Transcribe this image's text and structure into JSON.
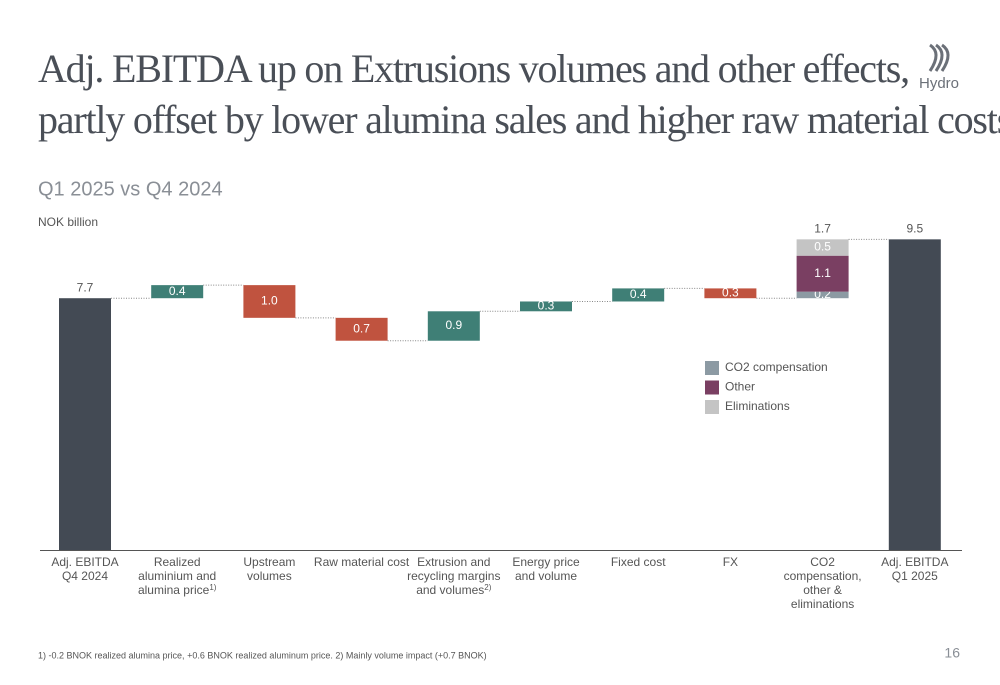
{
  "header": {
    "title": [
      "Adj. EBITDA up on Extrusions volumes and other effects,",
      "partly offset by lower alumina sales and higher raw material costs"
    ],
    "logo": "Hydro"
  },
  "chart_data": {
    "type": "waterfall",
    "subtitle": "Q1 2025 vs Q4 2024",
    "unit_label": "NOK billion",
    "categories": [
      "Adj. EBITDA\nQ4 2024",
      "Realized\naluminium and\nalumina price",
      "Upstream\nvolumes",
      "Raw material cost",
      "Extrusion and\nrecycling margins\nand volumes",
      "Energy price\nand volume",
      "Fixed cost",
      "FX",
      "CO2\ncompensation,\nother &\neliminations",
      "Adj. EBITDA\nQ1 2025"
    ],
    "category_footnotes": {
      "1": "1)",
      "4": "2)"
    },
    "kinds": [
      "total",
      "delta",
      "delta",
      "delta",
      "delta",
      "delta",
      "delta",
      "delta",
      "stack",
      "total"
    ],
    "values": [
      7.7,
      0.4,
      -1.0,
      -0.7,
      0.9,
      0.3,
      0.4,
      -0.3,
      1.7,
      9.5
    ],
    "value_labels": [
      "7.7",
      "0.4",
      "1.0",
      "0.7",
      "0.9",
      "0.3",
      "0.4",
      "0.3",
      "1.7",
      "9.5"
    ],
    "colors": {
      "total": "#434a54",
      "positive": "#3f7f76",
      "negative": "#c0533f"
    },
    "segments": [
      {
        "name": "CO2 compensation",
        "color": "#8c9aa3",
        "value": 0.2
      },
      {
        "name": "Other",
        "color": "#7a3f62",
        "value": 1.1
      },
      {
        "name": "Eliminations",
        "color": "#c4c4c4",
        "value": 0.5
      }
    ],
    "ylim": [
      0,
      10
    ]
  },
  "footer": {
    "footnote": "1) -0.2 BNOK realized alumina price, +0.6 BNOK realized aluminum price. 2) Mainly volume impact (+0.7 BNOK)",
    "page": "16"
  }
}
